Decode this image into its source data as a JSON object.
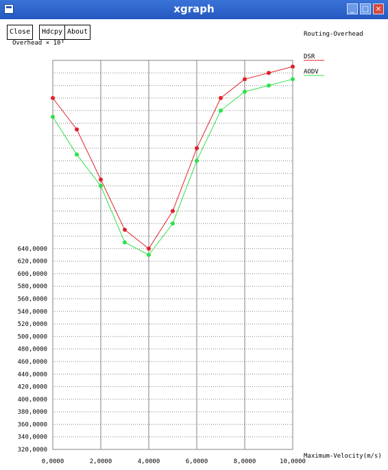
{
  "window": {
    "title": "xgraph",
    "minimize_glyph": "_",
    "maximize_glyph": "□",
    "close_glyph": "×"
  },
  "toolbar": {
    "close_label": "Close",
    "hdcpy_label": "Hdcpy",
    "about_label": "About"
  },
  "colors": {
    "titlebar": "#2458c0",
    "series_dsr": "#e0202a",
    "series_aodv": "#2ee04a",
    "grid": "#808080"
  },
  "chart_data": {
    "type": "line",
    "title": "Routing-Overhead",
    "ylabel": "Overhead × 10³",
    "xlabel": "Maximum-Velocity(m/s)",
    "xlim": [
      0,
      10
    ],
    "ylim": [
      320,
      940
    ],
    "x_ticks": [
      "0,0000",
      "2,0000",
      "4,0000",
      "6,0000",
      "8,0000",
      "10,0000"
    ],
    "y_ticks": [
      "320,0000",
      "340,0000",
      "360,0000",
      "380,0000",
      "400,0000",
      "420,0000",
      "440,0000",
      "460,0000",
      "480,0000",
      "500,0000",
      "520,0000",
      "540,0000",
      "560,0000",
      "580,0000",
      "600,0000",
      "620,0000",
      "640,0000"
    ],
    "legend_position": "top-right",
    "grid": true,
    "x": [
      0,
      1,
      2,
      3,
      4,
      5,
      6,
      7,
      8,
      9,
      10
    ],
    "series": [
      {
        "name": "DSR",
        "values": [
          880,
          830,
          750,
          670,
          640,
          700,
          800,
          880,
          910,
          920,
          930
        ]
      },
      {
        "name": "AODV",
        "values": [
          850,
          790,
          740,
          650,
          630,
          680,
          780,
          860,
          890,
          900,
          910
        ]
      }
    ]
  }
}
